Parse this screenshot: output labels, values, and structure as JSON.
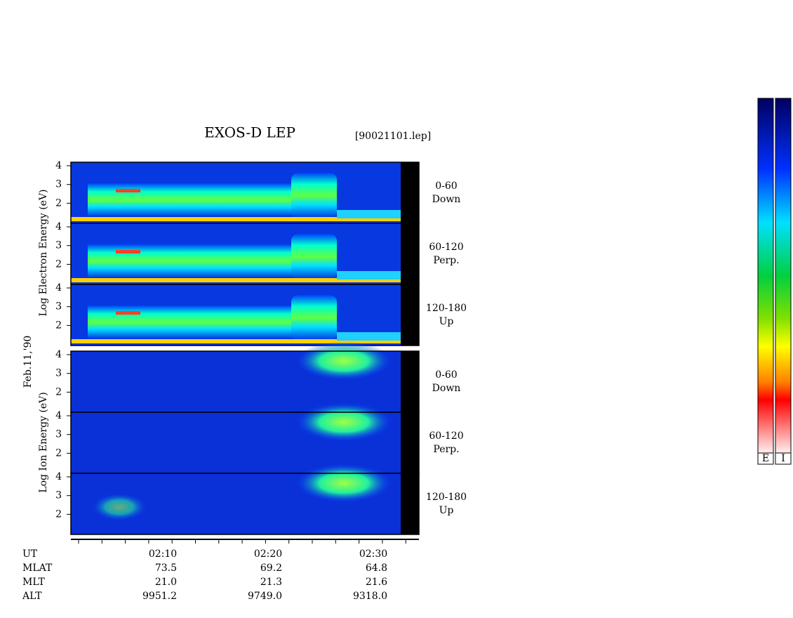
{
  "title": "EXOS-D LEP",
  "file": "[90021101.lep]",
  "date": "Feb.11,'90",
  "electron": {
    "ylabel": "Log  Electron  Energy  (eV)",
    "yticks": [
      4,
      3,
      2
    ],
    "channels": [
      {
        "range": "0-60",
        "dir": "Down"
      },
      {
        "range": "60-120",
        "dir": "Perp."
      },
      {
        "range": "120-180",
        "dir": "Up"
      }
    ]
  },
  "ion": {
    "ylabel": "Log  Ion  Energy  (eV)",
    "yticks": [
      4,
      3,
      2
    ],
    "channels": [
      {
        "range": "0-60",
        "dir": "Down"
      },
      {
        "range": "60-120",
        "dir": "Perp."
      },
      {
        "range": "120-180",
        "dir": "Up"
      }
    ]
  },
  "table": {
    "rows": [
      {
        "label": "UT",
        "values": [
          "02:10",
          "02:20",
          "02:30"
        ]
      },
      {
        "label": "MLAT",
        "values": [
          "73.5",
          "69.2",
          "64.8"
        ]
      },
      {
        "label": "MLT",
        "values": [
          "21.0",
          "21.3",
          "21.6"
        ]
      },
      {
        "label": "ALT",
        "values": [
          "9951.2",
          "9749.0",
          "9318.0"
        ]
      }
    ]
  },
  "colorbars": [
    "E",
    "I"
  ]
}
